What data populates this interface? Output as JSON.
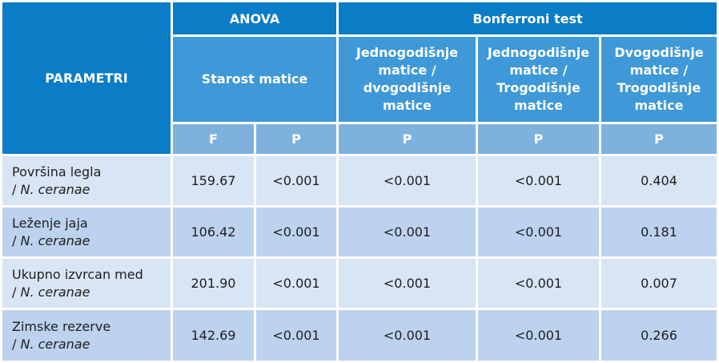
{
  "header": {
    "parametri": "PARAMETRI",
    "anova": "ANOVA",
    "bonferroni": "Bonferroni test",
    "starost": "Starost matice",
    "comparisons": [
      [
        "Jednogodišnje",
        "matice /",
        "dvogodišnje",
        "matice"
      ],
      [
        "Jednogodišnje",
        "matice /",
        "Trogodišnje",
        "matice"
      ],
      [
        "Dvogodišnje",
        "matice /",
        "Trogodišnje",
        "matice"
      ]
    ],
    "sub_headers": [
      "F",
      "P",
      "P",
      "P",
      "P"
    ]
  },
  "rows": [
    {
      "name": "Površina legla",
      "slash": "/",
      "species": "N. ceranae",
      "values": [
        "159.67",
        "<0.001",
        "<0.001",
        "<0.001",
        "0.404"
      ]
    },
    {
      "name": "Leženje jaja",
      "slash": "/",
      "species": "N. ceranae",
      "values": [
        "106.42",
        "<0.001",
        "<0.001",
        "<0.001",
        "0.181"
      ]
    },
    {
      "name": "Ukupno izvrcan med",
      "slash": "/",
      "species": "N. ceranae",
      "values": [
        "201.90",
        "<0.001",
        "<0.001",
        "<0.001",
        "0.007"
      ]
    },
    {
      "name": "Zimske rezerve",
      "slash": "/",
      "species": "N. ceranae",
      "values": [
        "142.69",
        "<0.001",
        "<0.001",
        "<0.001",
        "0.266"
      ]
    }
  ]
}
